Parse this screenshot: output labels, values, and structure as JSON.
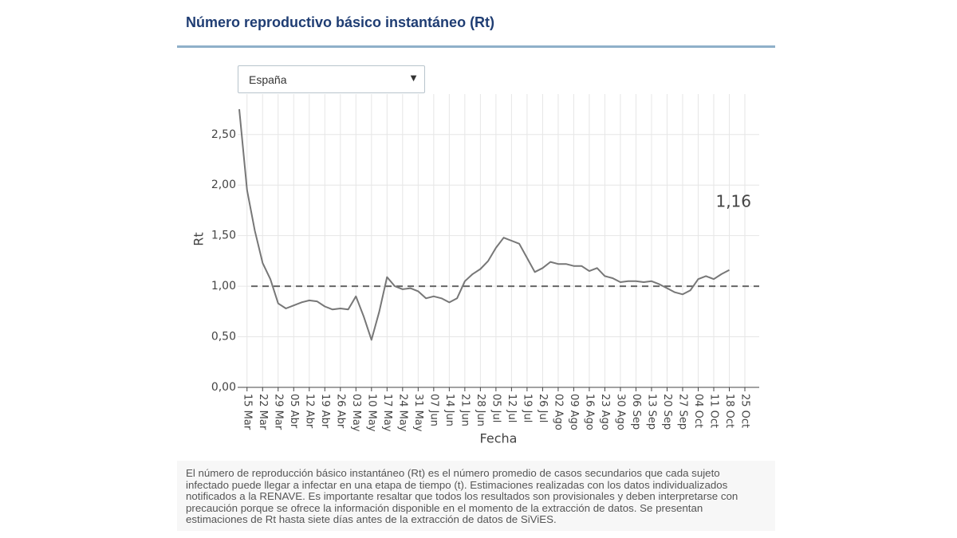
{
  "header": {
    "title": "Número reproductivo básico instantáneo (Rt)"
  },
  "dropdown": {
    "selected": "España"
  },
  "chart_data": {
    "type": "line",
    "x_label": "Fecha",
    "y_label": "Rt",
    "categories": [
      null,
      "15 Mar",
      null,
      "22 Mar",
      null,
      "29 Mar",
      null,
      "05 Abr",
      null,
      "12 Abr",
      null,
      "19 Abr",
      null,
      "26 Abr",
      null,
      "03 May",
      null,
      "10 May",
      null,
      "17 May",
      null,
      "24 May",
      null,
      "31 May",
      null,
      "07 Jun",
      null,
      "14 Jun",
      null,
      "21 Jun",
      null,
      "28 Jun",
      null,
      "05 Jul",
      null,
      "12 Jul",
      null,
      "19 Jul",
      null,
      "26 Jul",
      null,
      "02 Ago",
      null,
      "09 Ago",
      null,
      "16 Ago",
      null,
      "23 Ago",
      null,
      "30 Ago",
      null,
      "06 Sep",
      null,
      "13 Sep",
      null,
      "20 Sep",
      null,
      "27 Sep",
      null,
      "04 Oct",
      null,
      "11 Oct",
      null,
      "18 Oct",
      null,
      "25 Oct"
    ],
    "series": [
      {
        "name": "España",
        "color": "#777777",
        "values": [
          2.75,
          1.95,
          1.55,
          1.23,
          1.07,
          0.83,
          0.78,
          0.81,
          0.84,
          0.86,
          0.85,
          0.8,
          0.77,
          0.78,
          0.77,
          0.9,
          0.7,
          0.47,
          0.75,
          1.09,
          1.0,
          0.97,
          0.98,
          0.95,
          0.88,
          0.9,
          0.88,
          0.84,
          0.88,
          1.05,
          1.12,
          1.17,
          1.25,
          1.38,
          1.48,
          1.45,
          1.42,
          1.28,
          1.14,
          1.18,
          1.24,
          1.22,
          1.22,
          1.2,
          1.2,
          1.15,
          1.18,
          1.1,
          1.08,
          1.04,
          1.05,
          1.05,
          1.04,
          1.05,
          1.02,
          0.98,
          0.94,
          0.92,
          0.96,
          1.07,
          1.1,
          1.07,
          1.12,
          1.16,
          null,
          null
        ]
      }
    ],
    "end_label": {
      "value": 1.16,
      "label": "1,16"
    },
    "reference_line": 1,
    "ylim": [
      0,
      2.9
    ],
    "yticks": [
      {
        "value": 0,
        "label": "0,00"
      },
      {
        "value": 0.5,
        "label": "0,50"
      },
      {
        "value": 1,
        "label": "1,00"
      },
      {
        "value": 1.5,
        "label": "1,50"
      },
      {
        "value": 2,
        "label": "2,00"
      },
      {
        "value": 2.5,
        "label": "2,50"
      }
    ],
    "grid": true
  },
  "note": "El número de reproducción básico instantáneo (Rt) es el número promedio de casos secundarios que cada sujeto infectado puede llegar a infectar en una etapa de tiempo (t). Estimaciones realizadas con los datos individualizados notificados a la RENAVE. Es importante resaltar que todos los resultados son provisionales y deben interpretarse con precaución porque se ofrece la información disponible en el momento de la extracción de datos. Se presentan estimaciones de Rt hasta siete días antes de la extracción de datos de SiViES."
}
